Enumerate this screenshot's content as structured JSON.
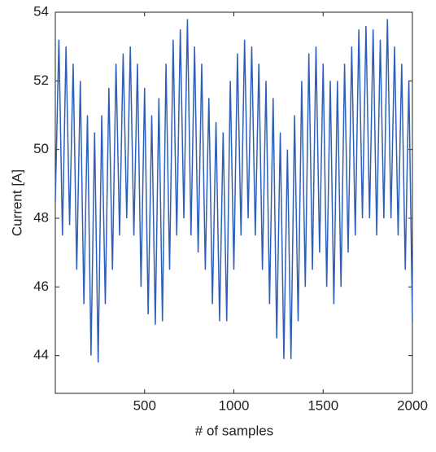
{
  "chart_data": {
    "type": "line",
    "x_label": "# of samples",
    "y_label": "Current [A]",
    "x": [
      0,
      20,
      40,
      60,
      80,
      100,
      120,
      140,
      160,
      180,
      200,
      220,
      240,
      260,
      280,
      300,
      320,
      340,
      360,
      380,
      400,
      420,
      440,
      460,
      480,
      500,
      520,
      540,
      560,
      580,
      600,
      620,
      640,
      660,
      680,
      700,
      720,
      740,
      760,
      780,
      800,
      820,
      840,
      860,
      880,
      900,
      920,
      940,
      960,
      980,
      1000,
      1020,
      1040,
      1060,
      1080,
      1100,
      1120,
      1140,
      1160,
      1180,
      1200,
      1220,
      1240,
      1260,
      1280,
      1300,
      1320,
      1340,
      1360,
      1380,
      1400,
      1420,
      1440,
      1460,
      1480,
      1500,
      1520,
      1540,
      1560,
      1580,
      1600,
      1620,
      1640,
      1660,
      1680,
      1700,
      1720,
      1740,
      1760,
      1780,
      1800,
      1820,
      1840,
      1860,
      1880,
      1900,
      1920,
      1940,
      1960,
      1980,
      2000
    ],
    "series": [
      {
        "color": "#2e5fb8",
        "values": [
          48.5,
          53.2,
          47.5,
          53,
          47.8,
          52.5,
          46.5,
          52,
          45.5,
          51,
          44,
          50.5,
          43.8,
          51,
          45.5,
          51.8,
          46.5,
          52.5,
          47.5,
          52.8,
          48,
          53,
          47.5,
          52.5,
          46,
          51.8,
          45.2,
          51,
          44.9,
          51.5,
          45,
          52.5,
          46.5,
          53.2,
          47.5,
          53.5,
          48,
          53.8,
          47.5,
          53,
          47,
          52.5,
          46.5,
          51.5,
          45.5,
          50.8,
          45,
          50.5,
          45,
          52,
          46.5,
          52.8,
          47.5,
          53.2,
          48,
          53,
          47.5,
          52.5,
          46.5,
          52,
          45.5,
          51.5,
          44.5,
          50.5,
          43.9,
          50,
          43.9,
          51,
          45,
          52,
          46,
          52.8,
          46.5,
          53,
          47,
          52.5,
          46,
          52,
          45.5,
          52,
          46,
          52.5,
          47,
          53,
          47.5,
          53.5,
          48,
          53.6,
          48,
          53.5,
          47.5,
          53.2,
          48,
          53.8,
          48,
          53,
          47.5,
          52.5,
          46.5,
          52,
          45
        ]
      }
    ],
    "xlim": [
      0,
      2000
    ],
    "xticks": [
      500,
      1000,
      1500,
      2000
    ],
    "ylim": [
      42.9,
      54
    ],
    "yticks": [
      44,
      46,
      48,
      50,
      52,
      54
    ]
  }
}
